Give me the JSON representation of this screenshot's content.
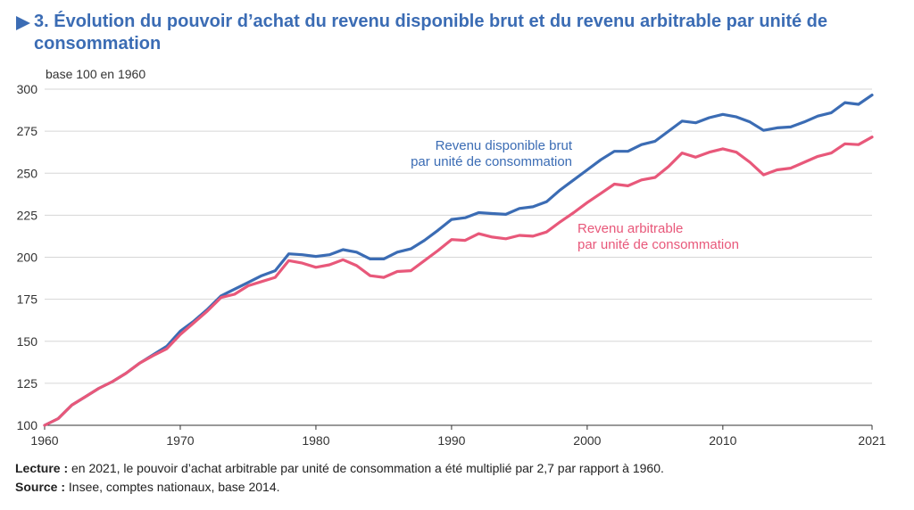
{
  "header": {
    "title": "3. Évolution du pouvoir d’achat du revenu disponible brut et du revenu arbitrable par unité de consommation"
  },
  "chart_data": {
    "type": "line",
    "unit_label": "base 100 en 1960",
    "xlim": [
      1960,
      2021
    ],
    "ylim": [
      100,
      300
    ],
    "x_ticks": [
      1960,
      1970,
      1980,
      1990,
      2000,
      2010,
      2021
    ],
    "y_ticks": [
      100,
      125,
      150,
      175,
      200,
      225,
      250,
      275,
      300
    ],
    "grid": "horizontal",
    "x": [
      1960,
      1961,
      1962,
      1963,
      1964,
      1965,
      1966,
      1967,
      1968,
      1969,
      1970,
      1971,
      1972,
      1973,
      1974,
      1975,
      1976,
      1977,
      1978,
      1979,
      1980,
      1981,
      1982,
      1983,
      1984,
      1985,
      1986,
      1987,
      1988,
      1989,
      1990,
      1991,
      1992,
      1993,
      1994,
      1995,
      1996,
      1997,
      1998,
      1999,
      2000,
      2001,
      2002,
      2003,
      2004,
      2005,
      2006,
      2007,
      2008,
      2009,
      2010,
      2011,
      2012,
      2013,
      2014,
      2015,
      2016,
      2017,
      2018,
      2019,
      2020,
      2021
    ],
    "series": [
      {
        "name": "Revenu disponible brut par unité de consommation",
        "label_lines": [
          "Revenu disponible brut",
          "par unité de consommation"
        ],
        "color": "#3b6cb4",
        "values": [
          100,
          104,
          112,
          117,
          122,
          126,
          131,
          137,
          142,
          147,
          156,
          162,
          169,
          177,
          181,
          185,
          189,
          192,
          202,
          201.5,
          200.5,
          201.5,
          204.5,
          203,
          199,
          199,
          203,
          205,
          210,
          216,
          222.5,
          223.5,
          226.5,
          226,
          225.5,
          229,
          230,
          233,
          240,
          246,
          252,
          258,
          263,
          263,
          267,
          269,
          275,
          281,
          280,
          283,
          285,
          283.5,
          280.5,
          275.5,
          277,
          277.5,
          280.5,
          284,
          286,
          292,
          291,
          296.5
        ]
      },
      {
        "name": "Revenu arbitrable par unité de consommation",
        "label_lines": [
          "Revenu arbitrable",
          "par unité de consommation"
        ],
        "color": "#e8587a",
        "values": [
          100,
          104,
          112,
          117,
          122,
          126,
          131,
          137,
          141.5,
          145.5,
          154,
          161,
          168,
          176,
          178,
          183,
          185.5,
          188,
          198,
          196.5,
          194,
          195.5,
          198.5,
          195,
          189,
          188,
          191.5,
          192,
          198,
          204,
          210.5,
          210,
          214,
          212,
          211,
          213,
          212.5,
          215,
          221,
          226.5,
          232.5,
          238,
          243.5,
          242.5,
          246,
          247.5,
          254,
          262,
          259.5,
          262.5,
          264.5,
          262.5,
          256.5,
          249,
          252,
          253,
          256.5,
          260,
          262,
          267.5,
          267,
          271.5
        ]
      }
    ]
  },
  "footnotes": {
    "lecture_label": "Lecture :",
    "lecture_text": " en 2021, le pouvoir d’achat arbitrable par unité de consommation a été multiplié par 2,7 par rapport à 1960.",
    "source_label": "Source :",
    "source_text": " Insee, comptes nationaux, base 2014."
  }
}
